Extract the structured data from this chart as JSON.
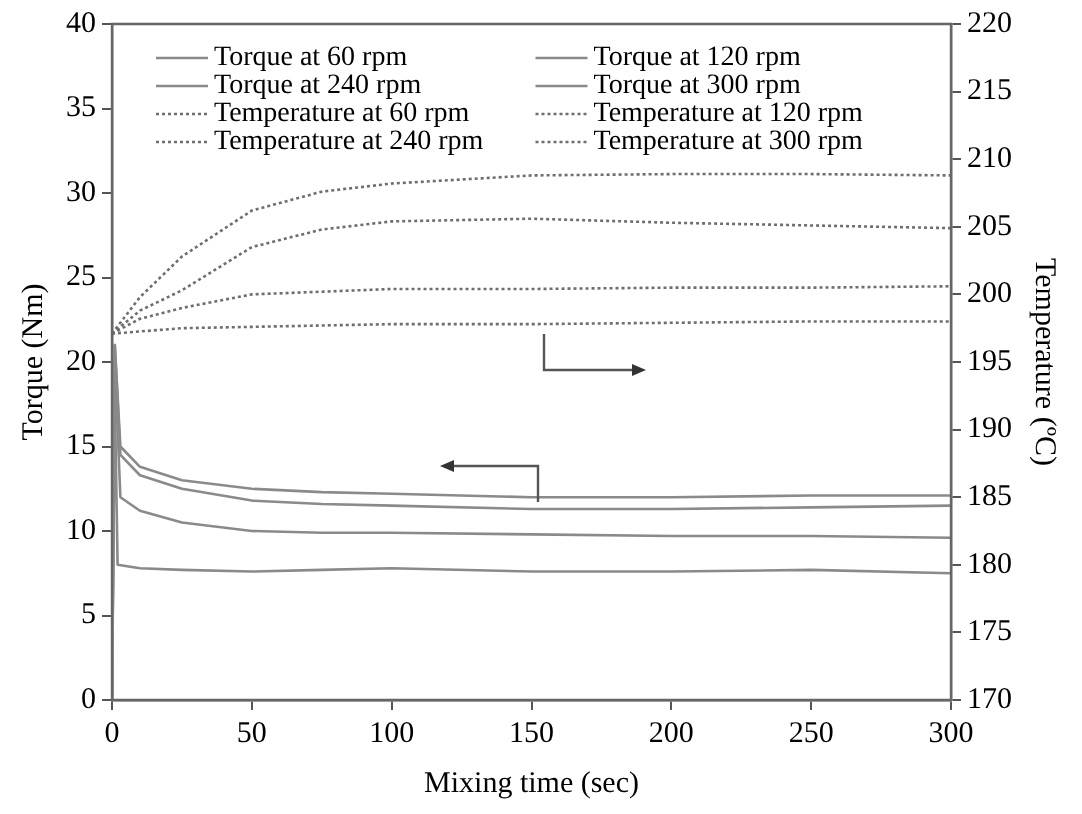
{
  "chart_data": {
    "type": "line",
    "xlabel": "Mixing time (sec)",
    "ylabel": "Torque (Nm)",
    "y2label": "Temperature (ºC)",
    "xlim": [
      0,
      300
    ],
    "xticks": [
      0,
      50,
      100,
      150,
      200,
      250,
      300
    ],
    "ylim": [
      0,
      40
    ],
    "yticks": [
      0,
      5,
      10,
      15,
      20,
      25,
      30,
      35,
      40
    ],
    "y2lim": [
      170,
      220
    ],
    "y2ticks": [
      170,
      175,
      180,
      185,
      190,
      195,
      200,
      205,
      210,
      215,
      220
    ],
    "grid": false,
    "legend": "top",
    "marker": "none",
    "series": [
      {
        "name": "Torque at 60 rpm",
        "color": "#8a8a8a",
        "line_style": "solid",
        "x": [
          0,
          1,
          3,
          10,
          25,
          50,
          75,
          100,
          150,
          200,
          250,
          300
        ],
        "values": [
          0,
          21,
          15,
          13.8,
          13,
          12.5,
          12.3,
          12.2,
          12,
          12,
          12.1,
          12.1
        ]
      },
      {
        "name": "Torque at 120 rpm",
        "color": "#8a8a8a",
        "line_style": "solid",
        "x": [
          0,
          1,
          3,
          10,
          25,
          50,
          75,
          100,
          150,
          200,
          250,
          300
        ],
        "values": [
          0,
          21,
          14.5,
          13.3,
          12.5,
          11.8,
          11.6,
          11.5,
          11.3,
          11.3,
          11.4,
          11.5
        ]
      },
      {
        "name": "Torque at 240 rpm",
        "color": "#8a8a8a",
        "line_style": "solid",
        "x": [
          0,
          1,
          3,
          10,
          25,
          50,
          75,
          100,
          150,
          200,
          250,
          300
        ],
        "values": [
          0,
          20,
          12,
          11.2,
          10.5,
          10,
          9.9,
          9.9,
          9.8,
          9.7,
          9.7,
          9.6
        ]
      },
      {
        "name": "Torque at 300 rpm",
        "color": "#8a8a8a",
        "line_style": "solid",
        "x": [
          0,
          1,
          2,
          10,
          25,
          50,
          75,
          100,
          150,
          200,
          250,
          300
        ],
        "values": [
          0,
          18,
          8,
          7.8,
          7.7,
          7.6,
          7.7,
          7.8,
          7.6,
          7.6,
          7.7,
          7.5
        ]
      },
      {
        "name": "Temperature at 60 rpm",
        "color": "#6e6e6e",
        "line_style": "dotted",
        "axis": "y2",
        "x": [
          0,
          25,
          50,
          100,
          150,
          200,
          250,
          300
        ],
        "values": [
          197.1,
          197.5,
          197.6,
          197.8,
          197.8,
          197.9,
          198,
          198
        ]
      },
      {
        "name": "Temperature at 120 rpm",
        "color": "#6e6e6e",
        "line_style": "dotted",
        "axis": "y2",
        "x": [
          0,
          10,
          25,
          50,
          100,
          150,
          200,
          250,
          300
        ],
        "values": [
          197.1,
          198.2,
          199,
          200,
          200.4,
          200.4,
          200.5,
          200.5,
          200.6
        ]
      },
      {
        "name": "Temperature at 240 rpm",
        "color": "#6e6e6e",
        "line_style": "dotted",
        "axis": "y2",
        "x": [
          0,
          10,
          25,
          50,
          75,
          100,
          150,
          200,
          250,
          300
        ],
        "values": [
          197.1,
          198.8,
          200.3,
          203.5,
          204.8,
          205.4,
          205.6,
          205.3,
          205.1,
          204.9
        ]
      },
      {
        "name": "Temperature at 300 rpm",
        "color": "#6e6e6e",
        "line_style": "dotted",
        "axis": "y2",
        "x": [
          0,
          10,
          25,
          50,
          75,
          100,
          150,
          200,
          250,
          300
        ],
        "values": [
          197.1,
          199.8,
          202.8,
          206.2,
          207.6,
          208.2,
          208.8,
          208.9,
          208.9,
          208.8
        ]
      }
    ]
  }
}
